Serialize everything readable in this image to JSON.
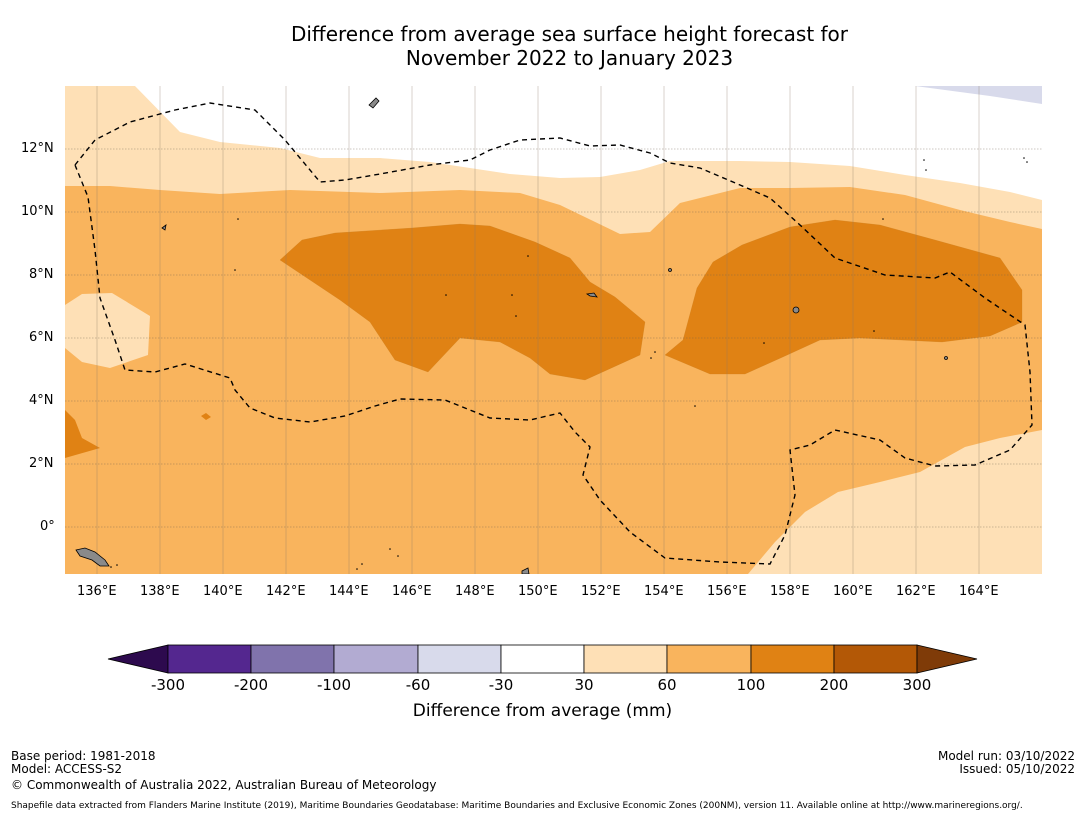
{
  "title": {
    "line1": "Difference from average sea surface height forecast for",
    "line2": "November 2022 to January 2023"
  },
  "map": {
    "lon_labels": [
      "136°E",
      "138°E",
      "140°E",
      "142°E",
      "144°E",
      "146°E",
      "148°E",
      "150°E",
      "152°E",
      "154°E",
      "156°E",
      "158°E",
      "160°E",
      "162°E",
      "164°E"
    ],
    "lat_labels": [
      "12°N",
      "10°N",
      "8°N",
      "6°N",
      "4°N",
      "2°N",
      "0°"
    ],
    "legend_categories": [
      {
        "label": "< -300 mm",
        "color": "#2d0a4e"
      },
      {
        "label": "-300 to -200 mm",
        "color": "#54278f"
      },
      {
        "label": "-200 to -100 mm",
        "color": "#8073ac"
      },
      {
        "label": "-100 to -60 mm",
        "color": "#b2abd2"
      },
      {
        "label": "-60 to -30 mm",
        "color": "#d8daeb"
      },
      {
        "label": "-30 to 30 mm",
        "color": "#ffffff"
      },
      {
        "label": "30 to 60 mm",
        "color": "#fee0b6"
      },
      {
        "label": "60 to 100 mm",
        "color": "#f9b45d"
      },
      {
        "label": "100 to 200 mm",
        "color": "#e08214"
      },
      {
        "label": "200 to 300 mm",
        "color": "#b35806"
      },
      {
        "label": "> 300 mm",
        "color": "#7f3b08"
      }
    ]
  },
  "colorbar": {
    "ticks": [
      "-300",
      "-200",
      "-100",
      "-60",
      "-30",
      "30",
      "60",
      "100",
      "200",
      "300"
    ],
    "title": "Difference from average (mm)"
  },
  "footer": {
    "base_period": "Base period: 1981-2018",
    "model": "Model: ACCESS-S2",
    "copyright": "© Commonwealth of Australia 2022, Australian Bureau of Meteorology",
    "model_run": "Model run: 03/10/2022",
    "issued": "Issued: 05/10/2022",
    "shapefile": "Shapefile data extracted from Flanders Marine Institute (2019), Maritime Boundaries Geodatabase: Maritime Boundaries and Exclusive Economic Zones (200NM), version 11. Available online at http://www.marineregions.org/."
  }
}
